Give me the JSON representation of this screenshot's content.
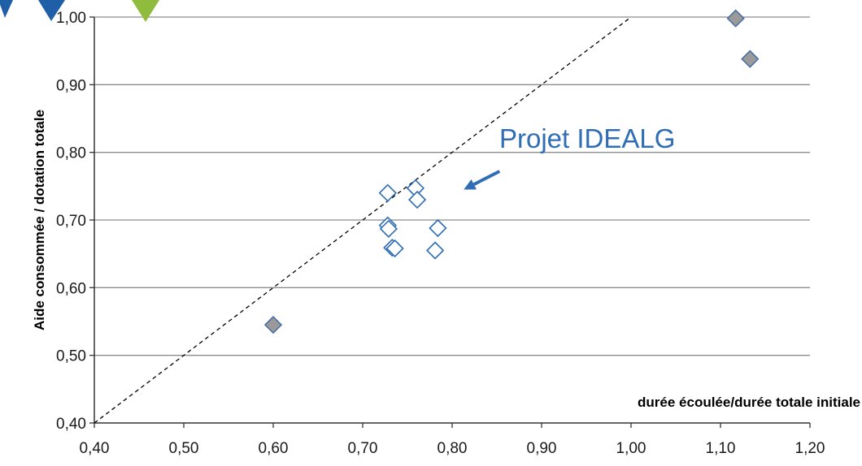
{
  "chart_data": {
    "type": "scatter",
    "xlabel": "durée écoulée/durée totale initiale",
    "ylabel": "Aide consommée / dotation totale",
    "xlim": [
      0.4,
      1.2
    ],
    "ylim": [
      0.4,
      1.0
    ],
    "x_ticks": [
      "0,40",
      "0,50",
      "0,60",
      "0,70",
      "0,80",
      "0,90",
      "1,00",
      "1,10",
      "1,20"
    ],
    "y_ticks": [
      "0,40",
      "0,50",
      "0,60",
      "0,70",
      "0,80",
      "0,90",
      "1,00"
    ],
    "x_tick_values": [
      0.4,
      0.5,
      0.6,
      0.7,
      0.8,
      0.9,
      1.0,
      1.1,
      1.2
    ],
    "y_tick_values": [
      0.4,
      0.5,
      0.6,
      0.7,
      0.8,
      0.9,
      1.0
    ],
    "grid": "horizontal",
    "reference_line": {
      "style": "dashed",
      "points": [
        [
          0.4,
          0.4
        ],
        [
          1.0,
          1.0
        ]
      ]
    },
    "series": [
      {
        "marker": "diamond-filled",
        "color": "#9a9a9a",
        "edge_color": "#4a6fa5",
        "points": [
          {
            "x": 0.6,
            "y": 0.545
          },
          {
            "x": 1.117,
            "y": 0.998
          },
          {
            "x": 1.133,
            "y": 0.938
          }
        ]
      },
      {
        "marker": "diamond-open",
        "color": "#ffffff",
        "edge_color": "#2f6db5",
        "points": [
          {
            "x": 0.728,
            "y": 0.74
          },
          {
            "x": 0.759,
            "y": 0.747
          },
          {
            "x": 0.761,
            "y": 0.73
          },
          {
            "x": 0.728,
            "y": 0.692
          },
          {
            "x": 0.729,
            "y": 0.687
          },
          {
            "x": 0.784,
            "y": 0.688
          },
          {
            "x": 0.733,
            "y": 0.659
          },
          {
            "x": 0.736,
            "y": 0.658
          },
          {
            "x": 0.781,
            "y": 0.655
          }
        ]
      }
    ],
    "annotation": {
      "text": "Projet IDEALG",
      "color": "#2f6db5",
      "arrow_from": [
        0.853,
        0.772
      ],
      "arrow_to": [
        0.813,
        0.745
      ]
    }
  },
  "colors": {
    "axis": "#333333",
    "grid": "#8c8c8c",
    "dashed_line": "#000000",
    "accent_blue": "#2f6db5",
    "marker_navy": "#1f5fa8",
    "marker_green": "#8fbc3c"
  },
  "decorations": [
    "blue-triangle-marker",
    "blue-triangle-marker",
    "green-triangle-marker"
  ]
}
